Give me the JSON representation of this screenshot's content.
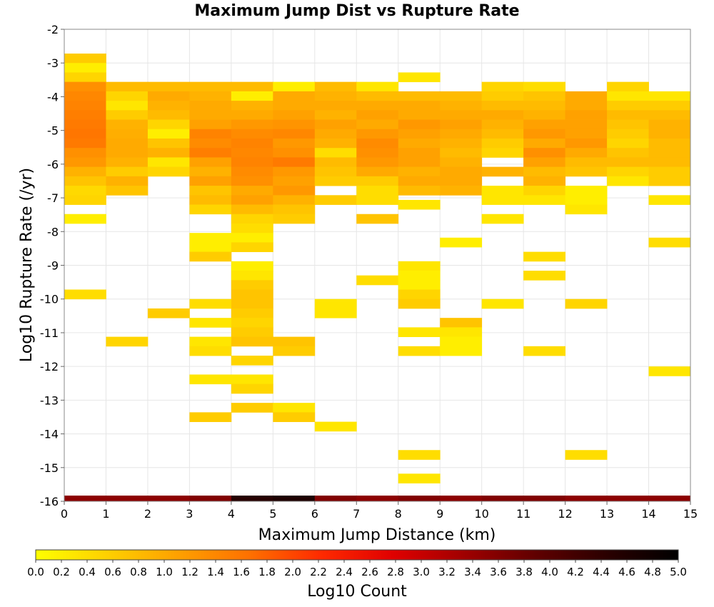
{
  "chart_data": {
    "type": "heatmap",
    "title": "Maximum Jump Dist vs Rupture Rate",
    "xlabel": "Maximum Jump Distance (km)",
    "ylabel": "Log10 Rupture Rate (/yr)",
    "xlim": [
      0,
      15
    ],
    "ylim": [
      -16,
      -2
    ],
    "x_ticks": [
      "0",
      "1",
      "2",
      "3",
      "4",
      "5",
      "6",
      "7",
      "8",
      "9",
      "10",
      "11",
      "12",
      "13",
      "14",
      "15"
    ],
    "y_ticks": [
      "-2",
      "-3",
      "-4",
      "-5",
      "-6",
      "-7",
      "-8",
      "-9",
      "-10",
      "-11",
      "-12",
      "-13",
      "-14",
      "-15",
      "-16"
    ],
    "x_bin_width": 1,
    "y_bin_height": 0.28,
    "colorbar": {
      "label": "Log10 Count",
      "range": [
        0,
        5
      ],
      "ticks": [
        "0.0",
        "0.2",
        "0.4",
        "0.6",
        "0.8",
        "1.0",
        "1.2",
        "1.4",
        "1.6",
        "1.8",
        "2.0",
        "2.2",
        "2.4",
        "2.6",
        "2.8",
        "3.0",
        "3.2",
        "3.4",
        "3.6",
        "3.8",
        "4.0",
        "4.2",
        "4.4",
        "4.6",
        "4.8",
        "5.0"
      ],
      "colors": [
        "#ffff00",
        "#ffd000",
        "#ffa000",
        "#ff7000",
        "#ff2a00",
        "#e00000",
        "#a00000",
        "#600000",
        "#2a0000",
        "#000000"
      ]
    },
    "grid": true,
    "cells": [
      [
        0,
        -2.72,
        0.6
      ],
      [
        0,
        -3.0,
        0.2
      ],
      [
        0,
        -3.28,
        0.5
      ],
      [
        0,
        -3.56,
        1.3
      ],
      [
        0,
        -3.84,
        1.4
      ],
      [
        0,
        -4.12,
        1.45
      ],
      [
        0,
        -4.4,
        1.5
      ],
      [
        0,
        -4.68,
        1.55
      ],
      [
        0,
        -4.96,
        1.6
      ],
      [
        0,
        -5.24,
        1.55
      ],
      [
        0,
        -5.52,
        1.3
      ],
      [
        0,
        -5.8,
        1.2
      ],
      [
        0,
        -6.08,
        0.9
      ],
      [
        0,
        -6.36,
        0.7
      ],
      [
        0,
        -6.64,
        0.45
      ],
      [
        0,
        -6.92,
        0.5
      ],
      [
        0,
        -7.48,
        0.2
      ],
      [
        0,
        -9.72,
        0.4
      ],
      [
        1,
        -3.56,
        0.8
      ],
      [
        1,
        -3.84,
        0.5
      ],
      [
        1,
        -4.12,
        0.3
      ],
      [
        1,
        -4.4,
        0.6
      ],
      [
        1,
        -4.68,
        0.9
      ],
      [
        1,
        -4.96,
        0.95
      ],
      [
        1,
        -5.24,
        1.0
      ],
      [
        1,
        -5.52,
        1.0
      ],
      [
        1,
        -5.8,
        0.9
      ],
      [
        1,
        -6.08,
        0.6
      ],
      [
        1,
        -6.36,
        0.9
      ],
      [
        1,
        -6.64,
        0.7
      ],
      [
        1,
        -11.12,
        0.5
      ],
      [
        2,
        -3.56,
        0.8
      ],
      [
        2,
        -3.84,
        1.0
      ],
      [
        2,
        -4.12,
        0.9
      ],
      [
        2,
        -4.4,
        0.8
      ],
      [
        2,
        -4.68,
        0.5
      ],
      [
        2,
        -4.96,
        0.2
      ],
      [
        2,
        -5.24,
        0.7
      ],
      [
        2,
        -5.52,
        0.9
      ],
      [
        2,
        -5.8,
        0.3
      ],
      [
        2,
        -6.08,
        0.5
      ],
      [
        2,
        -10.28,
        0.6
      ],
      [
        3,
        -3.56,
        0.8
      ],
      [
        3,
        -3.84,
        0.9
      ],
      [
        3,
        -4.12,
        1.0
      ],
      [
        3,
        -4.4,
        1.0
      ],
      [
        3,
        -4.68,
        1.1
      ],
      [
        3,
        -4.96,
        1.45
      ],
      [
        3,
        -5.24,
        1.35
      ],
      [
        3,
        -5.52,
        1.5
      ],
      [
        3,
        -5.8,
        1.1
      ],
      [
        3,
        -6.08,
        0.9
      ],
      [
        3,
        -6.36,
        1.1
      ],
      [
        3,
        -6.64,
        0.7
      ],
      [
        3,
        -6.92,
        0.8
      ],
      [
        3,
        -7.2,
        0.5
      ],
      [
        3,
        -8.04,
        0.2
      ],
      [
        3,
        -8.32,
        0.2
      ],
      [
        3,
        -8.6,
        0.6
      ],
      [
        3,
        -10.0,
        0.4
      ],
      [
        3,
        -10.56,
        0.3
      ],
      [
        3,
        -11.12,
        0.3
      ],
      [
        3,
        -11.4,
        0.4
      ],
      [
        3,
        -12.24,
        0.3
      ],
      [
        3,
        -13.36,
        0.6
      ],
      [
        4,
        -3.56,
        0.8
      ],
      [
        4,
        -3.84,
        0.2
      ],
      [
        4,
        -4.12,
        0.9
      ],
      [
        4,
        -4.4,
        1.0
      ],
      [
        4,
        -4.68,
        1.2
      ],
      [
        4,
        -4.96,
        1.35
      ],
      [
        4,
        -5.24,
        1.45
      ],
      [
        4,
        -5.52,
        1.4
      ],
      [
        4,
        -5.8,
        1.45
      ],
      [
        4,
        -6.08,
        1.35
      ],
      [
        4,
        -6.36,
        1.3
      ],
      [
        4,
        -6.64,
        1.0
      ],
      [
        4,
        -6.92,
        1.1
      ],
      [
        4,
        -7.2,
        0.8
      ],
      [
        4,
        -7.48,
        0.5
      ],
      [
        4,
        -7.76,
        0.4
      ],
      [
        4,
        -8.04,
        0.2
      ],
      [
        4,
        -8.32,
        0.5
      ],
      [
        4,
        -8.88,
        0.2
      ],
      [
        4,
        -9.16,
        0.3
      ],
      [
        4,
        -9.44,
        0.6
      ],
      [
        4,
        -9.72,
        0.7
      ],
      [
        4,
        -10.0,
        0.7
      ],
      [
        4,
        -10.28,
        0.6
      ],
      [
        4,
        -10.56,
        0.5
      ],
      [
        4,
        -10.84,
        0.6
      ],
      [
        4,
        -11.12,
        0.7
      ],
      [
        4,
        -11.68,
        0.5
      ],
      [
        4,
        -12.24,
        0.3
      ],
      [
        4,
        -12.52,
        0.5
      ],
      [
        4,
        -13.08,
        0.6
      ],
      [
        5,
        -3.56,
        0.2
      ],
      [
        5,
        -3.84,
        1.0
      ],
      [
        5,
        -4.12,
        1.0
      ],
      [
        5,
        -4.4,
        1.1
      ],
      [
        5,
        -4.68,
        1.25
      ],
      [
        5,
        -4.96,
        1.4
      ],
      [
        5,
        -5.24,
        1.2
      ],
      [
        5,
        -5.52,
        1.3
      ],
      [
        5,
        -5.8,
        1.55
      ],
      [
        5,
        -6.08,
        1.2
      ],
      [
        5,
        -6.36,
        1.1
      ],
      [
        5,
        -6.64,
        1.2
      ],
      [
        5,
        -6.92,
        0.9
      ],
      [
        5,
        -7.2,
        0.7
      ],
      [
        5,
        -7.48,
        0.6
      ],
      [
        5,
        -11.12,
        0.7
      ],
      [
        5,
        -11.4,
        0.6
      ],
      [
        5,
        -13.08,
        0.3
      ],
      [
        5,
        -13.36,
        0.6
      ],
      [
        6,
        -3.56,
        0.8
      ],
      [
        6,
        -3.84,
        0.9
      ],
      [
        6,
        -4.12,
        1.0
      ],
      [
        6,
        -4.4,
        0.9
      ],
      [
        6,
        -4.68,
        1.1
      ],
      [
        6,
        -4.96,
        1.0
      ],
      [
        6,
        -5.24,
        0.9
      ],
      [
        6,
        -5.52,
        0.4
      ],
      [
        6,
        -5.8,
        0.8
      ],
      [
        6,
        -6.08,
        0.7
      ],
      [
        6,
        -6.36,
        0.6
      ],
      [
        6,
        -6.92,
        0.6
      ],
      [
        6,
        -10.0,
        0.3
      ],
      [
        6,
        -10.28,
        0.3
      ],
      [
        6,
        -13.64,
        0.3
      ],
      [
        7,
        -3.56,
        0.3
      ],
      [
        7,
        -3.84,
        0.8
      ],
      [
        7,
        -4.12,
        1.0
      ],
      [
        7,
        -4.4,
        1.1
      ],
      [
        7,
        -4.68,
        1.0
      ],
      [
        7,
        -4.96,
        1.2
      ],
      [
        7,
        -5.24,
        1.35
      ],
      [
        7,
        -5.52,
        1.3
      ],
      [
        7,
        -5.8,
        1.2
      ],
      [
        7,
        -6.08,
        1.0
      ],
      [
        7,
        -6.36,
        0.6
      ],
      [
        7,
        -6.64,
        0.4
      ],
      [
        7,
        -6.92,
        0.4
      ],
      [
        7,
        -7.48,
        0.7
      ],
      [
        7,
        -9.3,
        0.4
      ],
      [
        8,
        -3.28,
        0.3
      ],
      [
        8,
        -3.84,
        0.8
      ],
      [
        8,
        -4.12,
        1.0
      ],
      [
        8,
        -4.4,
        1.0
      ],
      [
        8,
        -4.68,
        1.2
      ],
      [
        8,
        -4.96,
        1.1
      ],
      [
        8,
        -5.24,
        1.0
      ],
      [
        8,
        -5.52,
        1.1
      ],
      [
        8,
        -5.8,
        1.1
      ],
      [
        8,
        -6.08,
        0.9
      ],
      [
        8,
        -6.36,
        1.0
      ],
      [
        8,
        -6.64,
        0.8
      ],
      [
        8,
        -7.06,
        0.3
      ],
      [
        8,
        -8.88,
        0.3
      ],
      [
        8,
        -9.16,
        0.2
      ],
      [
        8,
        -9.44,
        0.2
      ],
      [
        8,
        -9.72,
        0.5
      ],
      [
        8,
        -10.0,
        0.6
      ],
      [
        8,
        -10.84,
        0.3
      ],
      [
        8,
        -11.4,
        0.4
      ],
      [
        8,
        -14.48,
        0.4
      ],
      [
        8,
        -15.18,
        0.3
      ],
      [
        9,
        -3.84,
        0.8
      ],
      [
        9,
        -4.12,
        0.9
      ],
      [
        9,
        -4.4,
        1.0
      ],
      [
        9,
        -4.68,
        1.1
      ],
      [
        9,
        -4.96,
        1.0
      ],
      [
        9,
        -5.24,
        0.9
      ],
      [
        9,
        -5.52,
        0.8
      ],
      [
        9,
        -5.8,
        0.9
      ],
      [
        9,
        -6.08,
        1.0
      ],
      [
        9,
        -6.36,
        1.0
      ],
      [
        9,
        -6.64,
        0.9
      ],
      [
        9,
        -8.18,
        0.2
      ],
      [
        9,
        -10.56,
        0.7
      ],
      [
        9,
        -10.84,
        0.3
      ],
      [
        9,
        -11.12,
        0.2
      ],
      [
        9,
        -11.4,
        0.2
      ],
      [
        10,
        -3.56,
        0.5
      ],
      [
        10,
        -3.84,
        0.6
      ],
      [
        10,
        -4.12,
        0.8
      ],
      [
        10,
        -4.4,
        1.0
      ],
      [
        10,
        -4.68,
        0.9
      ],
      [
        10,
        -4.96,
        0.8
      ],
      [
        10,
        -5.24,
        0.6
      ],
      [
        10,
        -5.52,
        0.5
      ],
      [
        10,
        -6.08,
        0.9
      ],
      [
        10,
        -6.64,
        0.3
      ],
      [
        10,
        -6.92,
        0.3
      ],
      [
        10,
        -7.48,
        0.3
      ],
      [
        10,
        -10.0,
        0.3
      ],
      [
        11,
        -3.56,
        0.4
      ],
      [
        11,
        -3.84,
        0.7
      ],
      [
        11,
        -4.12,
        0.8
      ],
      [
        11,
        -4.4,
        0.9
      ],
      [
        11,
        -4.68,
        1.1
      ],
      [
        11,
        -4.96,
        1.2
      ],
      [
        11,
        -5.24,
        1.0
      ],
      [
        11,
        -5.52,
        1.3
      ],
      [
        11,
        -5.8,
        1.1
      ],
      [
        11,
        -6.08,
        0.8
      ],
      [
        11,
        -6.36,
        0.9
      ],
      [
        11,
        -6.64,
        0.5
      ],
      [
        11,
        -6.92,
        0.3
      ],
      [
        11,
        -8.6,
        0.4
      ],
      [
        11,
        -9.16,
        0.4
      ],
      [
        11,
        -11.4,
        0.4
      ],
      [
        12,
        -3.84,
        1.0
      ],
      [
        12,
        -4.12,
        1.0
      ],
      [
        12,
        -4.4,
        1.1
      ],
      [
        12,
        -4.68,
        1.1
      ],
      [
        12,
        -4.96,
        1.1
      ],
      [
        12,
        -5.24,
        1.2
      ],
      [
        12,
        -5.52,
        1.0
      ],
      [
        12,
        -5.8,
        0.8
      ],
      [
        12,
        -6.08,
        0.7
      ],
      [
        12,
        -6.64,
        0.2
      ],
      [
        12,
        -6.92,
        0.2
      ],
      [
        12,
        -7.2,
        0.3
      ],
      [
        12,
        -10.0,
        0.5
      ],
      [
        12,
        -14.48,
        0.4
      ],
      [
        13,
        -3.56,
        0.5
      ],
      [
        13,
        -3.84,
        0.3
      ],
      [
        13,
        -4.12,
        0.6
      ],
      [
        13,
        -4.4,
        0.8
      ],
      [
        13,
        -4.68,
        0.7
      ],
      [
        13,
        -4.96,
        0.6
      ],
      [
        13,
        -5.24,
        0.5
      ],
      [
        13,
        -5.52,
        0.7
      ],
      [
        13,
        -5.8,
        0.8
      ],
      [
        13,
        -6.08,
        0.5
      ],
      [
        13,
        -6.36,
        0.3
      ],
      [
        14,
        -3.84,
        0.3
      ],
      [
        14,
        -4.12,
        0.6
      ],
      [
        14,
        -4.4,
        0.8
      ],
      [
        14,
        -4.68,
        0.9
      ],
      [
        14,
        -4.96,
        0.9
      ],
      [
        14,
        -5.24,
        0.8
      ],
      [
        14,
        -5.52,
        0.8
      ],
      [
        14,
        -5.8,
        0.8
      ],
      [
        14,
        -6.08,
        0.6
      ],
      [
        14,
        -6.36,
        0.6
      ],
      [
        14,
        -6.92,
        0.3
      ],
      [
        14,
        -8.18,
        0.4
      ],
      [
        14,
        -12.0,
        0.3
      ]
    ],
    "bottom_strip": [
      [
        0,
        3.5
      ],
      [
        1,
        3.5
      ],
      [
        2,
        3.5
      ],
      [
        3,
        3.6
      ],
      [
        4,
        4.5
      ],
      [
        5,
        4.6
      ],
      [
        6,
        3.6
      ],
      [
        7,
        3.5
      ],
      [
        8,
        3.6
      ],
      [
        9,
        3.5
      ],
      [
        10,
        3.6
      ],
      [
        11,
        3.6
      ],
      [
        12,
        3.5
      ],
      [
        13,
        3.5
      ],
      [
        14,
        3.5
      ]
    ]
  }
}
